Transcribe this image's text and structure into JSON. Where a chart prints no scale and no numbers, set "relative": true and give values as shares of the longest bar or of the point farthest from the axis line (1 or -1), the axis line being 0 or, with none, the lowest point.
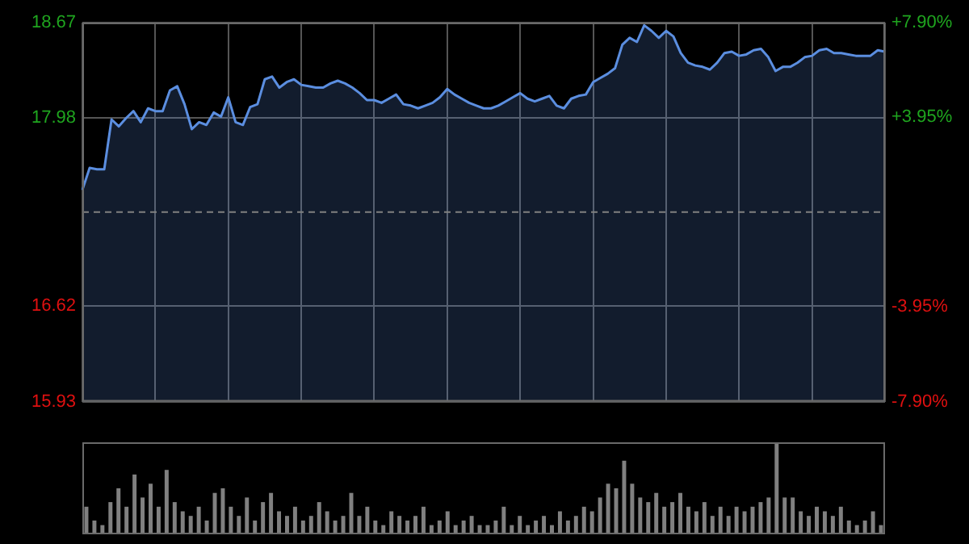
{
  "chart_data": [
    {
      "type": "area",
      "categories": [
        null,
        null,
        null,
        null,
        null,
        null,
        null,
        null,
        null,
        null,
        null,
        null,
        null,
        null,
        null,
        null,
        null,
        null,
        null,
        null,
        null,
        null,
        null,
        null,
        null,
        null,
        null,
        null,
        null,
        null,
        null,
        null,
        null,
        null,
        null,
        null,
        null,
        null,
        null,
        null,
        null,
        null,
        null,
        null,
        null,
        null,
        null,
        null,
        null,
        null,
        null,
        null,
        null,
        null,
        null,
        null,
        null,
        null,
        null,
        null,
        null,
        null,
        null,
        null,
        null,
        null,
        null,
        null,
        null,
        null,
        null,
        null,
        null,
        null,
        null,
        null,
        null,
        null,
        null,
        null,
        null,
        null,
        null,
        null,
        null,
        null,
        null,
        null,
        null,
        null,
        null,
        null,
        null,
        null,
        null,
        null,
        null,
        null,
        null,
        null,
        null,
        null,
        null,
        null,
        null,
        null,
        null,
        null,
        null,
        null,
        null
      ],
      "series": [
        {
          "color": "#5b8ee0",
          "values": [
            17.46,
            17.62,
            17.61,
            17.61,
            17.97,
            17.92,
            17.98,
            18.03,
            17.95,
            18.05,
            18.03,
            18.03,
            18.18,
            18.21,
            18.08,
            17.9,
            17.95,
            17.93,
            18.02,
            17.99,
            18.13,
            17.95,
            17.93,
            18.06,
            18.08,
            18.26,
            18.28,
            18.2,
            18.24,
            18.26,
            18.22,
            18.21,
            18.2,
            18.2,
            18.23,
            18.25,
            18.23,
            18.2,
            18.16,
            18.11,
            18.11,
            18.09,
            18.12,
            18.15,
            18.08,
            18.07,
            18.05,
            18.07,
            18.09,
            18.13,
            18.19,
            18.15,
            18.12,
            18.09,
            18.07,
            18.05,
            18.05,
            18.07,
            18.1,
            18.13,
            18.16,
            18.12,
            18.1,
            18.12,
            18.14,
            18.07,
            18.05,
            18.12,
            18.14,
            18.15,
            18.24,
            18.27,
            18.3,
            18.34,
            18.51,
            18.56,
            18.53,
            18.65,
            18.61,
            18.56,
            18.61,
            18.57,
            18.45,
            18.38,
            18.36,
            18.35,
            18.33,
            18.38,
            18.45,
            18.46,
            18.43,
            18.44,
            18.47,
            18.48,
            18.42,
            18.32,
            18.35,
            18.35,
            18.38,
            18.42,
            18.43,
            18.47,
            18.48,
            18.45,
            18.45,
            18.44,
            18.43,
            18.43,
            18.43,
            18.47,
            18.46
          ]
        }
      ],
      "ylim": [
        15.93,
        18.67
      ],
      "yticks": [
        15.93,
        16.62,
        17.98,
        18.67
      ],
      "y2lim": [
        -7.9,
        7.9
      ],
      "y2ticks": [
        {
          "value": -7.9,
          "label": "-7.90%"
        },
        {
          "value": -3.95,
          "label": "-3.95%"
        },
        {
          "value": 3.95,
          "label": "+3.95%"
        },
        {
          "value": 7.9,
          "label": "+7.90%"
        }
      ],
      "ref_lines": [
        {
          "axis": "y",
          "value": 17.3,
          "color": "#808080",
          "line_style": "dashed"
        }
      ],
      "grid": true,
      "legend": false
    },
    {
      "type": "bar",
      "relative": true,
      "color": "#808080",
      "categories": [
        null,
        null,
        null,
        null,
        null,
        null,
        null,
        null,
        null,
        null,
        null,
        null,
        null,
        null,
        null,
        null,
        null,
        null,
        null,
        null,
        null,
        null,
        null,
        null,
        null,
        null,
        null,
        null,
        null,
        null,
        null,
        null,
        null,
        null,
        null,
        null,
        null,
        null,
        null,
        null,
        null,
        null,
        null,
        null,
        null,
        null,
        null,
        null,
        null,
        null,
        null,
        null,
        null,
        null,
        null,
        null,
        null,
        null,
        null,
        null,
        null,
        null,
        null,
        null,
        null,
        null,
        null,
        null,
        null,
        null,
        null,
        null,
        null,
        null,
        null,
        null,
        null,
        null,
        null,
        null,
        null,
        null,
        null,
        null,
        null,
        null,
        null,
        null,
        null,
        null,
        null,
        null,
        null,
        null,
        null,
        null,
        null,
        null,
        null,
        null
      ],
      "values": [
        0.3,
        0.15,
        0.1,
        0.35,
        0.5,
        0.3,
        0.65,
        0.4,
        0.55,
        0.3,
        0.7,
        0.35,
        0.25,
        0.2,
        0.3,
        0.15,
        0.45,
        0.5,
        0.3,
        0.2,
        0.4,
        0.15,
        0.35,
        0.45,
        0.25,
        0.2,
        0.3,
        0.15,
        0.2,
        0.35,
        0.25,
        0.15,
        0.2,
        0.45,
        0.2,
        0.3,
        0.15,
        0.1,
        0.25,
        0.2,
        0.15,
        0.2,
        0.3,
        0.1,
        0.15,
        0.25,
        0.1,
        0.15,
        0.2,
        0.1,
        0.1,
        0.15,
        0.3,
        0.1,
        0.2,
        0.1,
        0.15,
        0.2,
        0.1,
        0.25,
        0.15,
        0.2,
        0.3,
        0.25,
        0.4,
        0.55,
        0.5,
        0.8,
        0.55,
        0.4,
        0.35,
        0.45,
        0.3,
        0.35,
        0.45,
        0.3,
        0.25,
        0.35,
        0.2,
        0.3,
        0.2,
        0.3,
        0.25,
        0.3,
        0.35,
        0.4,
        1,
        0.4,
        0.4,
        0.25,
        0.2,
        0.3,
        0.25,
        0.2,
        0.3,
        0.15,
        0.1,
        0.15,
        0.25,
        0.1
      ],
      "legend": false
    }
  ]
}
